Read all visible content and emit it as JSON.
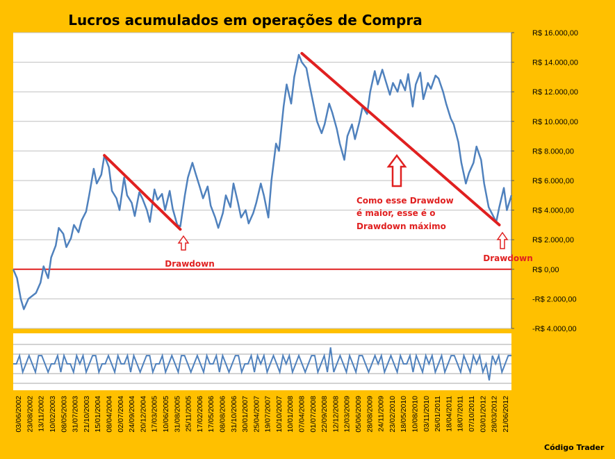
{
  "chart_data": [
    {
      "type": "line",
      "title": "Lucros acumulados em operações de Compra",
      "y_tick_labels": [
        "R$ 16.000,00",
        "R$ 14.000,00",
        "R$ 12.000,00",
        "R$ 10.000,00",
        "R$ 8.000,00",
        "R$ 6.000,00",
        "R$ 4.000,00",
        "R$ 2.000,00",
        "R$ 0,00",
        "-R$ 2.000,00",
        "-R$ 4.000,00"
      ],
      "ylim": [
        -4000,
        16000
      ],
      "y_ticks": [
        16000,
        14000,
        12000,
        10000,
        8000,
        6000,
        4000,
        2000,
        0,
        -2000,
        -4000
      ],
      "x_tick_labels": [
        "03/06/2002",
        "23/08/2002",
        "13/11/2002",
        "10/02/2003",
        "08/05/2003",
        "31/07/2003",
        "21/10/2003",
        "15/01/2004",
        "08/04/2004",
        "02/07/2004",
        "24/09/2004",
        "20/12/2004",
        "17/03/2005",
        "10/06/2005",
        "31/08/2005",
        "25/11/2005",
        "17/02/2006",
        "17/05/2006",
        "08/08/2006",
        "31/10/2006",
        "30/01/2007",
        "25/04/2007",
        "19/07/2007",
        "10/10/2007",
        "10/01/2008",
        "07/04/2008",
        "01/07/2008",
        "22/09/2008",
        "12/12/2008",
        "12/03/2009",
        "05/06/2009",
        "28/08/2009",
        "24/11/2009",
        "23/02/2010",
        "18/05/2010",
        "10/08/2010",
        "03/11/2010",
        "26/01/2011",
        "18/04/2011",
        "18/07/2011",
        "07/10/2011",
        "03/01/2012",
        "28/03/2012",
        "21/06/2012"
      ],
      "grid": true,
      "series": [
        {
          "color": "#4F81BD",
          "points": [
            [
              0,
              0
            ],
            [
              0.5,
              -600
            ],
            [
              1,
              -2000
            ],
            [
              1.4,
              -2700
            ],
            [
              2,
              -2000
            ],
            [
              3,
              -1600
            ],
            [
              3.6,
              -900
            ],
            [
              4,
              200
            ],
            [
              4.6,
              -600
            ],
            [
              5,
              800
            ],
            [
              5.6,
              1600
            ],
            [
              6,
              2800
            ],
            [
              6.6,
              2400
            ],
            [
              7,
              1500
            ],
            [
              7.6,
              2100
            ],
            [
              8,
              3000
            ],
            [
              8.6,
              2500
            ],
            [
              9,
              3300
            ],
            [
              9.6,
              3900
            ],
            [
              10,
              5000
            ],
            [
              10.6,
              6800
            ],
            [
              11,
              5800
            ],
            [
              11.6,
              6400
            ],
            [
              12,
              7700
            ],
            [
              12.6,
              6900
            ],
            [
              13,
              5300
            ],
            [
              13.6,
              4800
            ],
            [
              14,
              4000
            ],
            [
              14.6,
              6200
            ],
            [
              15,
              5000
            ],
            [
              15.6,
              4500
            ],
            [
              16,
              3600
            ],
            [
              16.6,
              5200
            ],
            [
              17,
              4800
            ],
            [
              17.6,
              4000
            ],
            [
              18,
              3200
            ],
            [
              18.6,
              5400
            ],
            [
              19,
              4700
            ],
            [
              19.6,
              5100
            ],
            [
              20,
              4000
            ],
            [
              20.6,
              5300
            ],
            [
              21,
              4100
            ],
            [
              21.6,
              3000
            ],
            [
              22,
              2900
            ],
            [
              22.6,
              5000
            ],
            [
              23,
              6200
            ],
            [
              23.6,
              7200
            ],
            [
              24,
              6500
            ],
            [
              24.6,
              5500
            ],
            [
              25,
              4800
            ],
            [
              25.6,
              5600
            ],
            [
              26,
              4300
            ],
            [
              26.6,
              3500
            ],
            [
              27,
              2800
            ],
            [
              27.6,
              3800
            ],
            [
              28,
              5000
            ],
            [
              28.6,
              4200
            ],
            [
              29,
              5800
            ],
            [
              29.6,
              4500
            ],
            [
              30,
              3500
            ],
            [
              30.6,
              4000
            ],
            [
              31,
              3100
            ],
            [
              31.6,
              3800
            ],
            [
              32,
              4500
            ],
            [
              32.6,
              5800
            ],
            [
              33,
              5000
            ],
            [
              33.6,
              3500
            ],
            [
              34,
              6000
            ],
            [
              34.6,
              8500
            ],
            [
              35,
              8000
            ],
            [
              35.6,
              11000
            ],
            [
              36,
              12500
            ],
            [
              36.6,
              11200
            ],
            [
              37,
              13000
            ],
            [
              37.6,
              14500
            ],
            [
              38,
              14000
            ],
            [
              38.6,
              13600
            ],
            [
              39,
              12500
            ],
            [
              39.6,
              11000
            ],
            [
              40,
              10000
            ],
            [
              40.6,
              9200
            ],
            [
              41,
              9800
            ],
            [
              41.6,
              11200
            ],
            [
              42,
              10600
            ],
            [
              42.6,
              9500
            ],
            [
              43,
              8500
            ],
            [
              43.6,
              7400
            ],
            [
              44,
              9000
            ],
            [
              44.6,
              9800
            ],
            [
              45,
              8800
            ],
            [
              45.6,
              10000
            ],
            [
              46,
              11000
            ],
            [
              46.6,
              10500
            ],
            [
              47,
              12000
            ],
            [
              47.6,
              13400
            ],
            [
              48,
              12500
            ],
            [
              48.6,
              13500
            ],
            [
              49,
              12800
            ],
            [
              49.6,
              11800
            ],
            [
              50,
              12600
            ],
            [
              50.6,
              12000
            ],
            [
              51,
              12800
            ],
            [
              51.6,
              12100
            ],
            [
              52,
              13200
            ],
            [
              52.6,
              11000
            ],
            [
              53,
              12500
            ],
            [
              53.6,
              13300
            ],
            [
              54,
              11500
            ],
            [
              54.6,
              12600
            ],
            [
              55,
              12200
            ],
            [
              55.6,
              13100
            ],
            [
              56,
              12900
            ],
            [
              56.6,
              12000
            ],
            [
              57,
              11200
            ],
            [
              57.6,
              10200
            ],
            [
              58,
              9800
            ],
            [
              58.6,
              8600
            ],
            [
              59,
              7200
            ],
            [
              59.6,
              5800
            ],
            [
              60,
              6500
            ],
            [
              60.6,
              7200
            ],
            [
              61,
              8300
            ],
            [
              61.6,
              7400
            ],
            [
              62,
              5800
            ],
            [
              62.6,
              4200
            ],
            [
              63,
              3800
            ],
            [
              63.6,
              3200
            ],
            [
              64,
              4200
            ],
            [
              64.6,
              5500
            ],
            [
              65,
              4000
            ],
            [
              65.6,
              5000
            ]
          ]
        }
      ],
      "annotations": {
        "drawdown_1": "Drawdown",
        "drawdown_2": "Drawdown",
        "note_line1": "Como esse Drawdow",
        "note_line2": "é maior, esse é o",
        "note_line3": "Drawdown máximo",
        "credit": "Código Trader",
        "trend_color": "#E02020"
      },
      "trend_lines": [
        {
          "from": [
            12,
            7700
          ],
          "to": [
            22,
            2700
          ]
        },
        {
          "from": [
            38,
            14600
          ],
          "to": [
            64,
            3000
          ]
        }
      ]
    },
    {
      "type": "line",
      "series": [
        {
          "color": "#4F81BD",
          "values": [
            0,
            0,
            1,
            -1,
            0,
            1,
            0,
            -1,
            1,
            1,
            0,
            -1,
            0,
            0,
            1,
            -1,
            1,
            0,
            0,
            -1,
            1,
            0,
            1,
            -1,
            0,
            1,
            1,
            -1,
            0,
            0,
            1,
            0,
            -1,
            1,
            0,
            0,
            1,
            -1,
            1,
            0,
            -1,
            0,
            1,
            1,
            -1,
            0,
            0,
            1,
            -1,
            0,
            1,
            0,
            -1,
            1,
            1,
            0,
            -1,
            0,
            1,
            0,
            -1,
            1,
            0,
            0,
            1,
            -1,
            1,
            0,
            -1,
            0,
            1,
            1,
            -1,
            0,
            0,
            1,
            -1,
            1,
            0,
            1,
            -1,
            0,
            1,
            0,
            -1,
            1,
            0,
            1,
            -1,
            0,
            1,
            0,
            -1,
            0,
            1,
            1,
            -1,
            0,
            1,
            -1,
            2,
            -1,
            0,
            1,
            0,
            -1,
            1,
            0,
            -1,
            1,
            1,
            0,
            -1,
            0,
            1,
            0,
            1,
            -1,
            0,
            1,
            0,
            -1,
            1,
            0,
            0,
            1,
            -1,
            1,
            0,
            -1,
            1,
            0,
            1,
            -1,
            0,
            1,
            -1,
            0,
            1,
            1,
            0,
            -1,
            1,
            0,
            -1,
            1,
            0,
            1,
            -1,
            0,
            -2,
            1,
            0,
            1,
            -1,
            0,
            1,
            1
          ]
        }
      ]
    }
  ]
}
